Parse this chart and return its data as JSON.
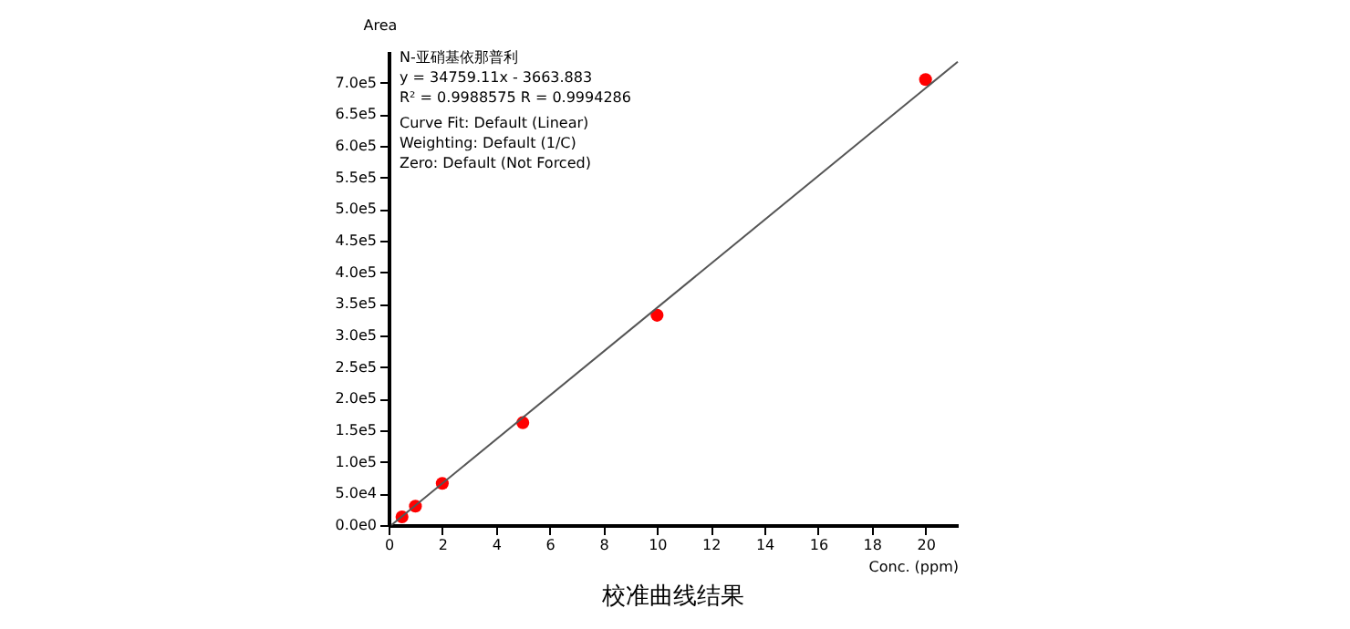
{
  "chart_data": {
    "type": "scatter",
    "title": "校准曲线结果",
    "xlabel": "Conc. (ppm)",
    "ylabel": "Area",
    "annotations": [
      "N-亚硝基依那普利",
      "y = 34759.11x - 3663.883",
      "R² = 0.9988575    R = 0.9994286",
      "Curve Fit: Default (Linear)",
      "Weighting: Default (1/C)",
      "Zero: Default (Not Forced)"
    ],
    "x": [
      0.5,
      1,
      2,
      5,
      10,
      20
    ],
    "series": [
      {
        "type": "scatter",
        "color": "#ff0000",
        "marker": "circle",
        "values": [
          13000,
          30000,
          66000,
          162000,
          332000,
          705000
        ]
      },
      {
        "type": "line",
        "color": "#555555",
        "x": [
          0.105,
          21.2
        ],
        "values": [
          0,
          733000
        ]
      }
    ],
    "xlim": [
      0,
      21.2
    ],
    "xticks": [
      0,
      2,
      4,
      6,
      8,
      10,
      12,
      14,
      16,
      18,
      20
    ],
    "ylim": [
      0,
      750000
    ],
    "yticks": [
      {
        "value": 0,
        "label": "0.0e0"
      },
      {
        "value": 50000,
        "label": "5.0e4"
      },
      {
        "value": 100000,
        "label": "1.0e5"
      },
      {
        "value": 150000,
        "label": "1.5e5"
      },
      {
        "value": 200000,
        "label": "2.0e5"
      },
      {
        "value": 250000,
        "label": "2.5e5"
      },
      {
        "value": 300000,
        "label": "3.0e5"
      },
      {
        "value": 350000,
        "label": "3.5e5"
      },
      {
        "value": 400000,
        "label": "4.0e5"
      },
      {
        "value": 450000,
        "label": "4.5e5"
      },
      {
        "value": 500000,
        "label": "5.0e5"
      },
      {
        "value": 550000,
        "label": "5.5e5"
      },
      {
        "value": 600000,
        "label": "6.0e5"
      },
      {
        "value": 650000,
        "label": "6.5e5"
      },
      {
        "value": 700000,
        "label": "7.0e5"
      }
    ],
    "grid": false
  }
}
